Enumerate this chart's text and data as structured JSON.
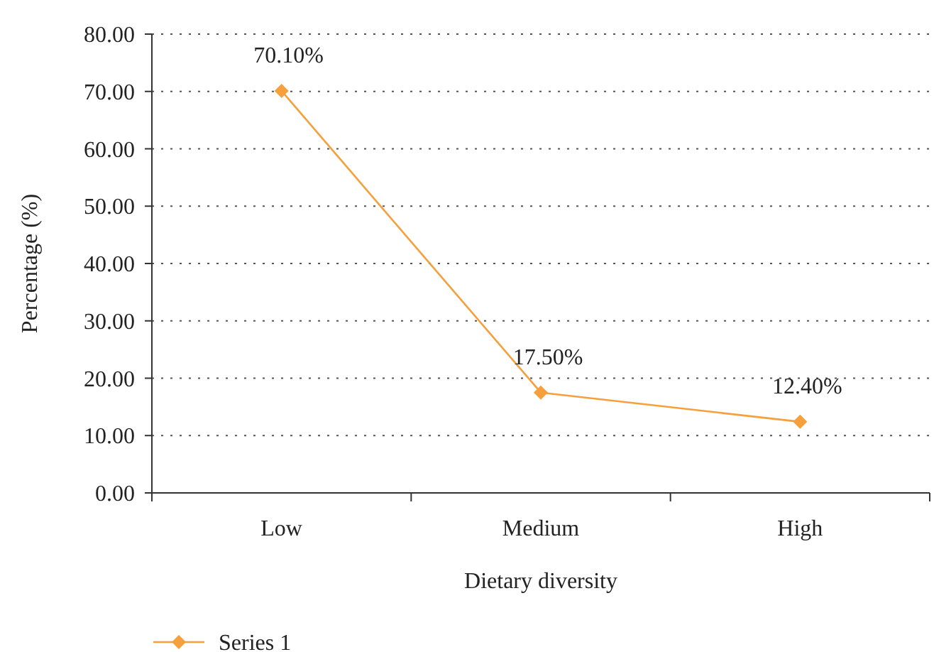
{
  "chart_data": {
    "type": "line",
    "xlabel": "Dietary diversity",
    "ylabel": "Percentage (%)",
    "categories": [
      "Low",
      "Medium",
      "High"
    ],
    "series": [
      {
        "name": "Series 1",
        "color": "#f5a03c",
        "values": [
          70.1,
          17.5,
          12.4
        ],
        "value_labels": [
          "70.10%",
          "17.50%",
          "12.40%"
        ]
      }
    ],
    "ylim": [
      0,
      80
    ],
    "yticks": [
      {
        "value": 0,
        "label": "0.00"
      },
      {
        "value": 10,
        "label": "10.00"
      },
      {
        "value": 20,
        "label": "20.00"
      },
      {
        "value": 30,
        "label": "30.00"
      },
      {
        "value": 40,
        "label": "40.00"
      },
      {
        "value": 50,
        "label": "50.00"
      },
      {
        "value": 60,
        "label": "60.00"
      },
      {
        "value": 70,
        "label": "70.00"
      },
      {
        "value": 80,
        "label": "80.00"
      }
    ],
    "grid": "y",
    "legend": "bottom left",
    "marker": "diamond",
    "line_style": "solid"
  }
}
